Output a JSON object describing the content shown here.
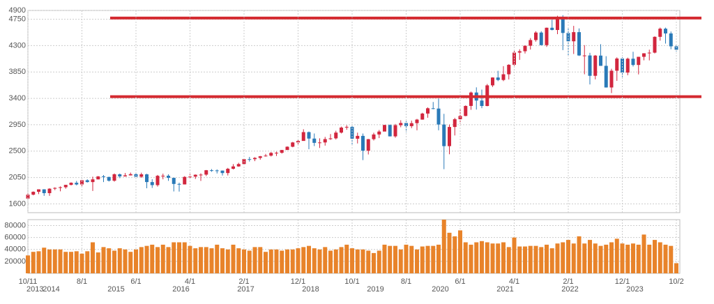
{
  "chart_data": [
    {
      "type": "candlestick",
      "open": [
        1690,
        1757,
        1806,
        1848,
        1783,
        1859,
        1872,
        1884,
        1924,
        1960,
        1931,
        2003,
        1972,
        2018,
        2068,
        2059,
        1995,
        2105,
        2068,
        2086,
        2107,
        2063,
        2104,
        1972,
        1920,
        2079,
        2080,
        2044,
        1940,
        1932,
        2060,
        2065,
        2097,
        2099,
        2174,
        2171,
        2168,
        2126,
        2199,
        2239,
        2279,
        2364,
        2363,
        2384,
        2412,
        2423,
        2470,
        2472,
        2519,
        2575,
        2648,
        2674,
        2824,
        2714,
        2641,
        2648,
        2705,
        2718,
        2816,
        2902,
        2914,
        2712,
        2760,
        2507,
        2704,
        2784,
        2834,
        2946,
        2752,
        2942,
        2980,
        2926,
        2977,
        3038,
        3141,
        3231,
        3226,
        2954,
        2585,
        2912,
        3044,
        3100,
        3271,
        3500,
        3363,
        3270,
        3622,
        3756,
        3714,
        3811,
        3973,
        4181,
        4204,
        4298,
        4395,
        4523,
        4308,
        4605,
        4567,
        4766,
        4516,
        4374,
        4530,
        4132,
        4132,
        3785,
        4130,
        3955,
        3586,
        3872,
        4080,
        3840,
        4077,
        3970,
        4109,
        4169,
        4180,
        4450,
        4589,
        4508,
        4288
      ],
      "high": [
        1775,
        1813,
        1849,
        1850,
        1867,
        1883,
        1897,
        1925,
        1968,
        1991,
        2005,
        2019,
        2064,
        2075,
        2093,
        2064,
        2119,
        2117,
        2126,
        2134,
        2130,
        2132,
        2113,
        2021,
        2094,
        2116,
        2104,
        2044,
        1962,
        2073,
        2111,
        2103,
        2120,
        2178,
        2194,
        2188,
        2169,
        2214,
        2278,
        2301,
        2371,
        2401,
        2398,
        2418,
        2453,
        2484,
        2491,
        2520,
        2582,
        2657,
        2695,
        2873,
        2835,
        2801,
        2718,
        2742,
        2791,
        2848,
        2917,
        2941,
        2940,
        2815,
        2800,
        2708,
        2813,
        2861,
        2949,
        2954,
        2964,
        3027,
        3013,
        3021,
        3050,
        3154,
        3247,
        3338,
        3393,
        3136,
        2954,
        3068,
        3233,
        3280,
        3515,
        3588,
        3550,
        3646,
        3760,
        3870,
        3950,
        3983,
        4218,
        4238,
        4302,
        4429,
        4546,
        4546,
        4608,
        4744,
        4809,
        4819,
        4596,
        4637,
        4594,
        4308,
        4178,
        4140,
        4325,
        4120,
        3905,
        4100,
        4101,
        4095,
        4195,
        4110,
        4170,
        4231,
        4458,
        4608,
        4607,
        4541,
        4300
      ],
      "low": [
        1685,
        1746,
        1767,
        1737,
        1737,
        1834,
        1814,
        1859,
        1915,
        1916,
        1904,
        1964,
        1820,
        2017,
        1972,
        1981,
        1980,
        2039,
        2067,
        2085,
        2056,
        2044,
        1867,
        1872,
        1894,
        2019,
        1993,
        1812,
        1810,
        1931,
        2033,
        2025,
        1992,
        2075,
        2147,
        2119,
        2084,
        2084,
        2187,
        2233,
        2271,
        2322,
        2329,
        2353,
        2406,
        2408,
        2417,
        2457,
        2520,
        2566,
        2605,
        2682,
        2533,
        2586,
        2553,
        2594,
        2691,
        2698,
        2802,
        2864,
        2604,
        2631,
        2346,
        2443,
        2682,
        2722,
        2848,
        2750,
        2729,
        2907,
        2822,
        2892,
        2855,
        3036,
        3070,
        3214,
        2855,
        2192,
        2447,
        2767,
        2966,
        3095,
        3205,
        3209,
        3233,
        3265,
        3594,
        3694,
        3694,
        3723,
        3956,
        4057,
        4165,
        4233,
        4367,
        4306,
        4278,
        4560,
        4495,
        4223,
        4115,
        4157,
        4124,
        3811,
        3637,
        3724,
        3954,
        3584,
        3491,
        3699,
        3764,
        3795,
        3944,
        3809,
        4049,
        4048,
        4167,
        4385,
        4335,
        4238,
        4200
      ],
      "close": [
        1757,
        1806,
        1848,
        1783,
        1859,
        1872,
        1884,
        1924,
        1960,
        1931,
        2003,
        1972,
        2018,
        2068,
        2059,
        1995,
        2105,
        2068,
        2086,
        2107,
        2063,
        2104,
        1972,
        1920,
        2079,
        2080,
        2044,
        1940,
        1932,
        2060,
        2065,
        2097,
        2099,
        2174,
        2171,
        2168,
        2126,
        2199,
        2239,
        2279,
        2364,
        2363,
        2384,
        2412,
        2423,
        2470,
        2472,
        2519,
        2575,
        2648,
        2674,
        2824,
        2714,
        2641,
        2648,
        2705,
        2718,
        2816,
        2902,
        2914,
        2712,
        2760,
        2507,
        2704,
        2784,
        2834,
        2946,
        2752,
        2942,
        2980,
        2926,
        2977,
        3038,
        3141,
        3231,
        3226,
        2954,
        2585,
        2912,
        3044,
        3100,
        3271,
        3500,
        3363,
        3270,
        3622,
        3756,
        3714,
        3811,
        3973,
        4181,
        4204,
        4298,
        4395,
        4523,
        4308,
        4605,
        4567,
        4766,
        4516,
        4374,
        4530,
        4132,
        4132,
        3785,
        4130,
        3955,
        3586,
        3872,
        4080,
        3840,
        4077,
        3970,
        4109,
        4169,
        4180,
        4450,
        4589,
        4508,
        4288,
        4230
      ],
      "up_color": "#d2263e",
      "down_color": "#2a7ab8",
      "xlim": [
        0,
        120
      ],
      "ylim": [
        1450,
        4900
      ],
      "yticks": [
        1600,
        2050,
        2500,
        2950,
        3400,
        3850,
        4300,
        4750,
        4900
      ],
      "hlines": [
        4770,
        3430
      ],
      "hline_color": "#d42a30",
      "grid": true
    },
    {
      "type": "bar",
      "values": [
        30000,
        36000,
        37000,
        43000,
        40000,
        40000,
        40000,
        36000,
        36000,
        37000,
        33000,
        37000,
        52000,
        35000,
        44000,
        42000,
        38000,
        42000,
        40000,
        36000,
        40000,
        44000,
        46000,
        48000,
        44000,
        48000,
        44000,
        52000,
        52000,
        52000,
        46000,
        42000,
        44000,
        44000,
        42000,
        48000,
        42000,
        40000,
        48000,
        42000,
        40000,
        38000,
        44000,
        44000,
        36000,
        40000,
        40000,
        38000,
        40000,
        40000,
        42000,
        44000,
        46000,
        42000,
        40000,
        44000,
        38000,
        40000,
        44000,
        48000,
        42000,
        40000,
        40000,
        38000,
        34000,
        38000,
        48000,
        46000,
        46000,
        40000,
        48000,
        46000,
        40000,
        45000,
        46000,
        46000,
        48000,
        90000,
        68000,
        62000,
        72000,
        52000,
        48000,
        52000,
        54000,
        52000,
        50000,
        50000,
        52000,
        44000,
        60000,
        45000,
        45000,
        46000,
        46000,
        44000,
        48000,
        42000,
        50000,
        52000,
        56000,
        50000,
        62000,
        50000,
        56000,
        50000,
        46000,
        48000,
        52000,
        58000,
        50000,
        48000,
        50000,
        48000,
        65000,
        48000,
        56000,
        52000,
        48000,
        46000,
        17000
      ],
      "color": "#e8832a",
      "xlim": [
        0,
        120
      ],
      "ylim": [
        0,
        90000
      ],
      "yticks": [
        20000,
        40000,
        60000,
        80000
      ],
      "xticks": [
        {
          "value": 0,
          "label": "10/11"
        },
        {
          "value": 10,
          "label": "8/1"
        },
        {
          "value": 20,
          "label": "6/1"
        },
        {
          "value": 30,
          "label": "4/1"
        },
        {
          "value": 40,
          "label": "2/1"
        },
        {
          "value": 50,
          "label": "12/1"
        },
        {
          "value": 60,
          "label": "10/1"
        },
        {
          "value": 70,
          "label": "8/1"
        },
        {
          "value": 80,
          "label": "6/1"
        },
        {
          "value": 90,
          "label": "4/1"
        },
        {
          "value": 100,
          "label": "2/1"
        },
        {
          "value": 110,
          "label": "12/1"
        },
        {
          "value": 120,
          "label": "10/2"
        }
      ],
      "year_labels": [
        {
          "value": 0,
          "label": "2013"
        },
        {
          "value": 3,
          "label": "2014"
        },
        {
          "value": 15,
          "label": "2015"
        },
        {
          "value": 27,
          "label": "2016"
        },
        {
          "value": 39,
          "label": "2017"
        },
        {
          "value": 51,
          "label": "2018"
        },
        {
          "value": 63,
          "label": "2019"
        },
        {
          "value": 75,
          "label": "2020"
        },
        {
          "value": 87,
          "label": "2021"
        },
        {
          "value": 99,
          "label": "2022"
        },
        {
          "value": 111,
          "label": "2023"
        }
      ],
      "grid": true
    }
  ]
}
